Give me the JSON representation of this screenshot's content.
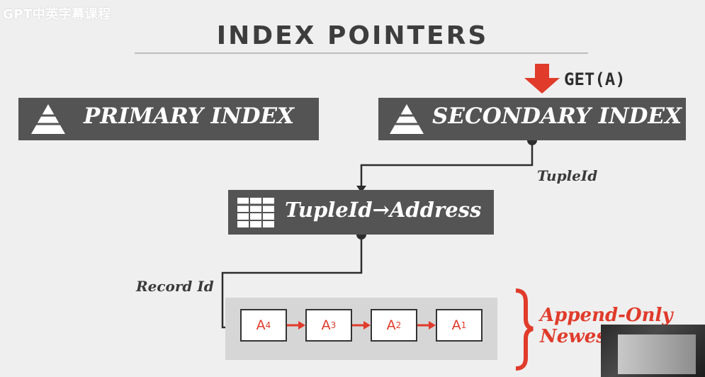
{
  "watermark": "GPT中英字幕课程",
  "title": "INDEX POINTERS",
  "get_label": "GET(A)",
  "primary_index": {
    "label": "PRIMARY INDEX"
  },
  "secondary_index": {
    "label": "SECONDARY INDEX"
  },
  "tuple_map": {
    "label": "TupleId→Address"
  },
  "edge_labels": {
    "tuple_id": "TupleId",
    "record_id": "Record Id"
  },
  "chain": [
    {
      "base": "A",
      "sub": "4"
    },
    {
      "base": "A",
      "sub": "3"
    },
    {
      "base": "A",
      "sub": "2"
    },
    {
      "base": "A",
      "sub": "1"
    }
  ],
  "append_label": {
    "line1": "Append-Only",
    "line2": "Newes"
  },
  "colors": {
    "box": "#545454",
    "accent": "#e03b2b",
    "text": "#3d3d3d"
  },
  "icons": {
    "index": "pyramid-icon",
    "table": "table-grid-icon",
    "request": "down-arrow-icon"
  }
}
